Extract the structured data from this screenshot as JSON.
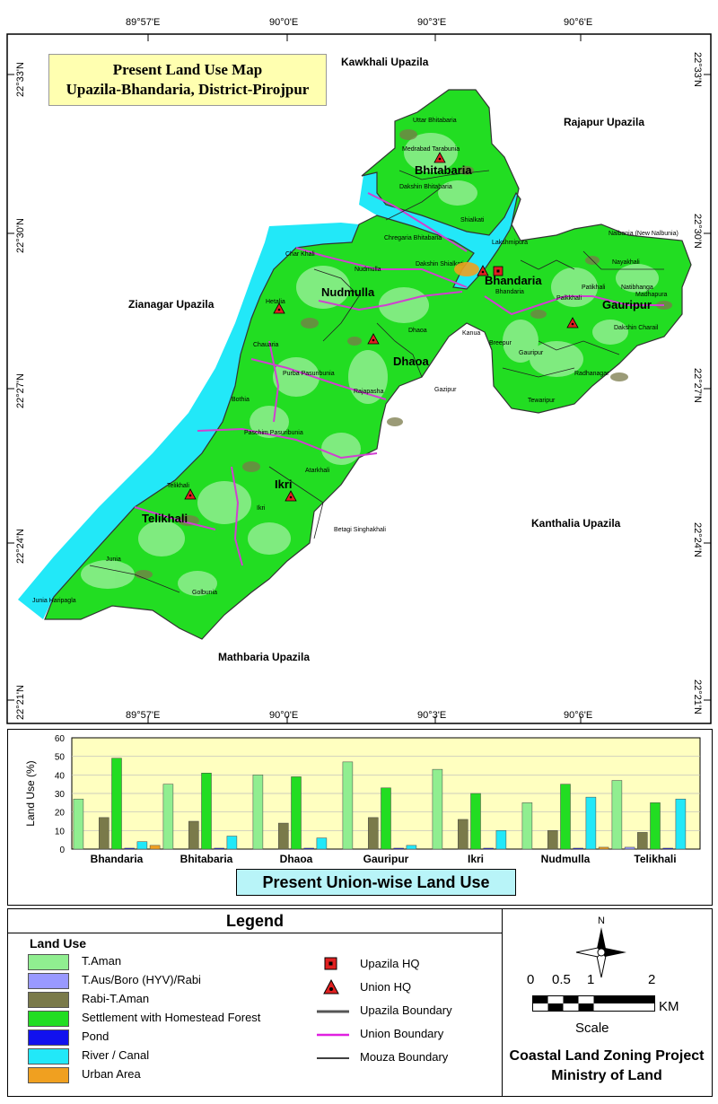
{
  "map": {
    "title_line1": "Present Land Use  Map",
    "title_line2": "Upazila-Bhandaria, District-Pirojpur",
    "lon_labels": [
      "89°57'E",
      "90°0'E",
      "90°3'E",
      "90°6'E"
    ],
    "lat_labels": [
      "22°33'N",
      "22°30'N",
      "22°27'N",
      "22°24'N",
      "22°21'N"
    ],
    "neighbors": {
      "north": "Kawkhali Upazila",
      "northeast": "Rajapur Upazila",
      "west": "Zianagar Upazila",
      "east": "Kanthalia Upazila",
      "south": "Mathbaria Upazila"
    },
    "unions": [
      "Bhitabaria",
      "Nudmulla",
      "Bhandaria",
      "Gauripur",
      "Dhaoa",
      "Ikri",
      "Telikhali"
    ],
    "mouzas": [
      "Uttar Bhitabaria",
      "Medrabad Tarabunia",
      "Dakshin Bhitabaria",
      "Shialkati",
      "Chregaria Bhitabaria",
      "Lakshmipura",
      "Char Khali",
      "Nudmulla",
      "Dakshin Shialkati",
      "Bhandaria",
      "Nalbania (New Nalbunia)",
      "Nayakhali",
      "Patikhali",
      "Natibhanga",
      "Madhapura",
      "Paikkhali",
      "Dakshin Charail",
      "Hetalia",
      "Chauaria",
      "Dhaoa",
      "Kanua",
      "Breepur",
      "Gauripur",
      "Purba Pasuribunia",
      "Rajapasha",
      "Radhanagar",
      "Gazipur",
      "Tewaripur",
      "Bothia",
      "Paschim Pasuribunia",
      "Atarkhali",
      "Telikhali",
      "Ikri",
      "Betagi Singhakhali",
      "Junia",
      "Junia Haripagla",
      "Golbunia"
    ]
  },
  "chart_data": {
    "type": "bar",
    "title": "Present Union-wise Land Use",
    "xlabel": "",
    "ylabel": "Land Use (%)",
    "ylim": [
      0,
      60
    ],
    "yticks": [
      "0",
      "10",
      "20",
      "30",
      "40",
      "50",
      "60"
    ],
    "categories": [
      "Bhandaria",
      "Bhitabaria",
      "Dhaoa",
      "Gauripur",
      "Ikri",
      "Nudmulla",
      "Telikhali"
    ],
    "series": [
      {
        "name": "T.Aman",
        "color": "#90ee90",
        "values": [
          27,
          35,
          40,
          47,
          43,
          25,
          37
        ]
      },
      {
        "name": "T.Aus/Boro (HYV)/Rabi",
        "color": "#9999ff",
        "values": [
          0,
          0,
          0,
          0,
          0,
          0,
          1
        ]
      },
      {
        "name": "Rabi-T.Aman",
        "color": "#7a7a4a",
        "values": [
          17,
          15,
          14,
          17,
          16,
          10,
          9
        ]
      },
      {
        "name": "Settlement with Homestead Forest",
        "color": "#22dd22",
        "values": [
          49,
          41,
          39,
          33,
          30,
          35,
          25
        ]
      },
      {
        "name": "Pond",
        "color": "#1111ee",
        "values": [
          0.5,
          0.5,
          0.5,
          0.5,
          0.5,
          0.5,
          0.5
        ]
      },
      {
        "name": "River / Canal",
        "color": "#22e8f8",
        "values": [
          4,
          7,
          6,
          2,
          10,
          28,
          27
        ]
      },
      {
        "name": "Urban Area",
        "color": "#f0a020",
        "values": [
          2,
          0,
          0,
          0,
          0,
          1,
          0
        ]
      }
    ],
    "colors": {
      "plot_bg": "#ffffc0"
    },
    "grid": true
  },
  "legend": {
    "title": "Legend",
    "land_use_heading": "Land Use",
    "land_use_items": [
      {
        "label": "T.Aman",
        "color": "#90ee90"
      },
      {
        "label": "T.Aus/Boro (HYV)/Rabi",
        "color": "#9999ff"
      },
      {
        "label": "Rabi-T.Aman",
        "color": "#7a7a4a"
      },
      {
        "label": "Settlement with Homestead Forest",
        "color": "#22dd22"
      },
      {
        "label": "Pond",
        "color": "#1111ee"
      },
      {
        "label": "River / Canal",
        "color": "#22e8f8"
      },
      {
        "label": "Urban Area",
        "color": "#f0a020"
      }
    ],
    "symbols": {
      "upazila_hq": "Upazila HQ",
      "union_hq": "Union HQ",
      "upazila_boundary": "Upazila Boundary",
      "union_boundary": "Union Boundary",
      "mouza_boundary": "Mouza Boundary"
    },
    "north": "N",
    "scale": {
      "labels": [
        "0",
        "0.5",
        "1",
        "2"
      ],
      "unit": "KM",
      "caption": "Scale"
    },
    "org_line1": "Coastal Land Zoning Project",
    "org_line2": "Ministry of Land"
  }
}
